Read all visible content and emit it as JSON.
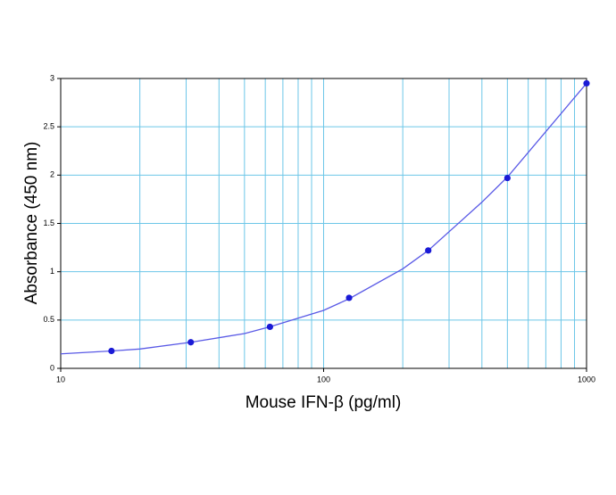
{
  "chart_data": {
    "type": "scatter",
    "x_label": "Mouse IFN-β (pg/ml)",
    "y_label": "Absorbance (450 nm)",
    "x": [
      15.6,
      31.25,
      62.5,
      125,
      250,
      500,
      1000
    ],
    "values": [
      0.18,
      0.27,
      0.43,
      0.73,
      1.22,
      1.97,
      2.95
    ],
    "color": "#1a1ad6",
    "fit": {
      "x": [
        10,
        15.6,
        20,
        31.25,
        50,
        62.5,
        100,
        125,
        200,
        250,
        400,
        500,
        700,
        1000
      ],
      "values": [
        0.15,
        0.18,
        0.2,
        0.27,
        0.36,
        0.43,
        0.6,
        0.72,
        1.03,
        1.22,
        1.72,
        1.98,
        2.45,
        2.95
      ],
      "color": "#5a5ae6"
    },
    "xscale": "log",
    "xlim": [
      10,
      1000
    ],
    "xticks": [
      10,
      100,
      1000
    ],
    "xgrid_minor": [
      20,
      30,
      40,
      50,
      60,
      70,
      80,
      90,
      200,
      300,
      400,
      500,
      600,
      700,
      800,
      900
    ],
    "ylim": [
      0,
      3
    ],
    "yticks": [
      0,
      0.5,
      1,
      1.5,
      2,
      2.5,
      3
    ],
    "grid": true,
    "grid_color": "#6cc6e8"
  }
}
